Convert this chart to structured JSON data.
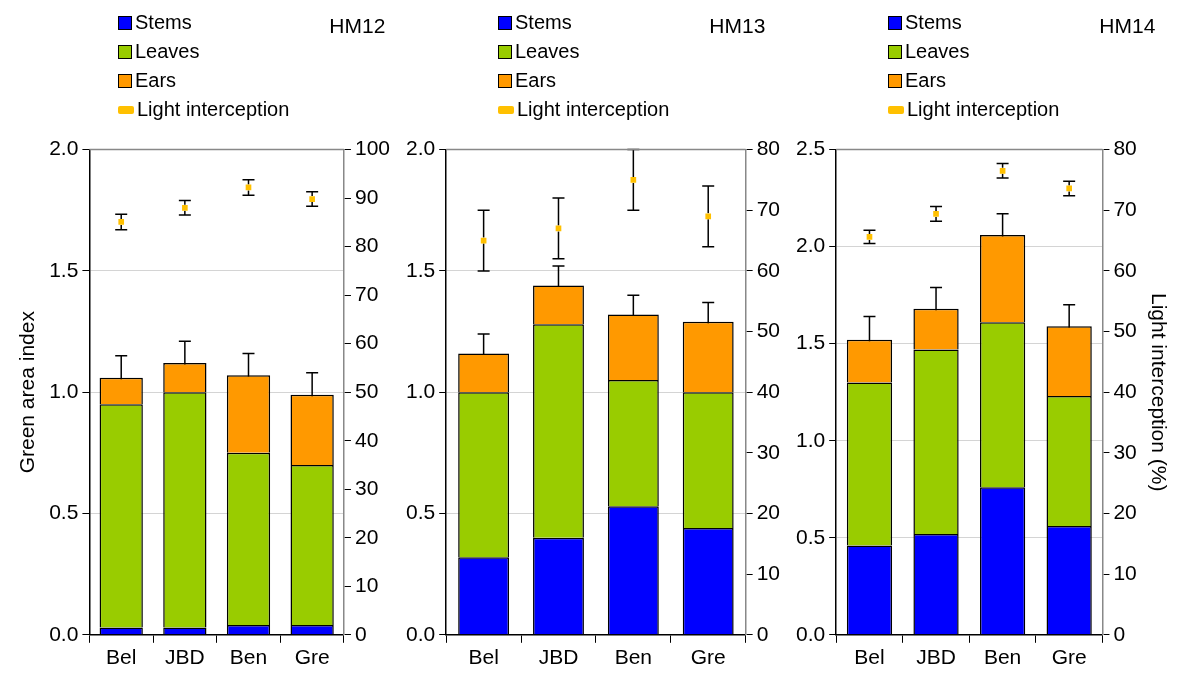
{
  "chart_data": [
    {
      "type": "bar",
      "title": "HM12",
      "ylabel": "Green area index",
      "categories": [
        "Bel",
        "JBD",
        "Ben",
        "Gre"
      ],
      "stacked": true,
      "legend": "top left",
      "grid": "y",
      "ylim": [
        0,
        2
      ],
      "yticks": [
        {
          "value": 0,
          "label": "0.0"
        },
        {
          "value": 0.5,
          "label": "0.5"
        },
        {
          "value": 1,
          "label": "1.0"
        },
        {
          "value": 1.5,
          "label": "1.5"
        },
        {
          "value": 2,
          "label": "2.0"
        }
      ],
      "y2lim": [
        0,
        100
      ],
      "y2ticks": [
        0,
        10,
        20,
        30,
        40,
        50,
        60,
        70,
        80,
        90,
        100
      ],
      "series": [
        {
          "name": "Stems",
          "color": "#0000ff",
          "values": [
            0.03,
            0.03,
            0.04,
            0.04
          ]
        },
        {
          "name": "Leaves",
          "color": "#99cc00",
          "values": [
            0.92,
            0.97,
            0.71,
            0.66
          ]
        },
        {
          "name": "Ears",
          "color": "#ff9900",
          "values": [
            0.11,
            0.12,
            0.32,
            0.29
          ],
          "errors": [
            0.09,
            0.09,
            0.09,
            0.09
          ]
        },
        {
          "name": "Light interception",
          "type": "scatter",
          "axis": "y2",
          "color": "#ffc000",
          "x": [
            "Bel",
            "JBD",
            "Ben",
            "Gre"
          ],
          "values": [
            85.1,
            88.0,
            92.2,
            89.8
          ],
          "errors": [
            1.6,
            1.5,
            1.6,
            1.5
          ]
        }
      ]
    },
    {
      "type": "bar",
      "title": "HM13",
      "categories": [
        "Bel",
        "JBD",
        "Ben",
        "Gre"
      ],
      "stacked": true,
      "legend": "top left",
      "grid": "y",
      "ylim": [
        0,
        2
      ],
      "yticks": [
        {
          "value": 0,
          "label": "0.0"
        },
        {
          "value": 0.5,
          "label": "0.5"
        },
        {
          "value": 1,
          "label": "1.0"
        },
        {
          "value": 1.5,
          "label": "1.5"
        },
        {
          "value": 2,
          "label": "2.0"
        }
      ],
      "y2lim": [
        0,
        80
      ],
      "y2ticks": [
        0,
        10,
        20,
        30,
        40,
        50,
        60,
        70,
        80
      ],
      "series": [
        {
          "name": "Stems",
          "color": "#0000ff",
          "values": [
            0.32,
            0.4,
            0.53,
            0.44
          ]
        },
        {
          "name": "Leaves",
          "color": "#99cc00",
          "values": [
            0.68,
            0.88,
            0.52,
            0.56
          ]
        },
        {
          "name": "Ears",
          "color": "#ff9900",
          "values": [
            0.16,
            0.16,
            0.27,
            0.29
          ],
          "errors": [
            0.08,
            0.08,
            0.08,
            0.08
          ]
        },
        {
          "name": "Light interception",
          "type": "scatter",
          "axis": "y2",
          "color": "#ffc000",
          "x": [
            "Bel",
            "JBD",
            "Ben",
            "Gre"
          ],
          "values": [
            65,
            67,
            75,
            69
          ],
          "errors": [
            5,
            5,
            5,
            5
          ]
        }
      ]
    },
    {
      "type": "bar",
      "title": "HM14",
      "y2label": "Light interception (%)",
      "categories": [
        "Bel",
        "JBD",
        "Ben",
        "Gre"
      ],
      "stacked": true,
      "legend": "top left",
      "grid": "y",
      "ylim": [
        0,
        2.5
      ],
      "yticks": [
        {
          "value": 0,
          "label": "0.0"
        },
        {
          "value": 0.5,
          "label": "0.5"
        },
        {
          "value": 1,
          "label": "1.0"
        },
        {
          "value": 1.5,
          "label": "1.5"
        },
        {
          "value": 2,
          "label": "2.0"
        },
        {
          "value": 2.5,
          "label": "2.5"
        }
      ],
      "y2lim": [
        0,
        80
      ],
      "y2ticks": [
        0,
        10,
        20,
        30,
        40,
        50,
        60,
        70,
        80
      ],
      "series": [
        {
          "name": "Stems",
          "color": "#0000ff",
          "values": [
            0.46,
            0.52,
            0.76,
            0.56
          ]
        },
        {
          "name": "Leaves",
          "color": "#99cc00",
          "values": [
            0.84,
            0.95,
            0.85,
            0.67
          ]
        },
        {
          "name": "Ears",
          "color": "#ff9900",
          "values": [
            0.22,
            0.21,
            0.45,
            0.36
          ],
          "errors": [
            0.12,
            0.11,
            0.11,
            0.11
          ]
        },
        {
          "name": "Light interception",
          "type": "scatter",
          "axis": "y2",
          "color": "#ffc000",
          "x": [
            "Bel",
            "JBD",
            "Ben",
            "Gre"
          ],
          "values": [
            65.6,
            69.4,
            76.5,
            73.6
          ],
          "errors": [
            1.1,
            1.2,
            1.2,
            1.2
          ]
        }
      ]
    }
  ]
}
